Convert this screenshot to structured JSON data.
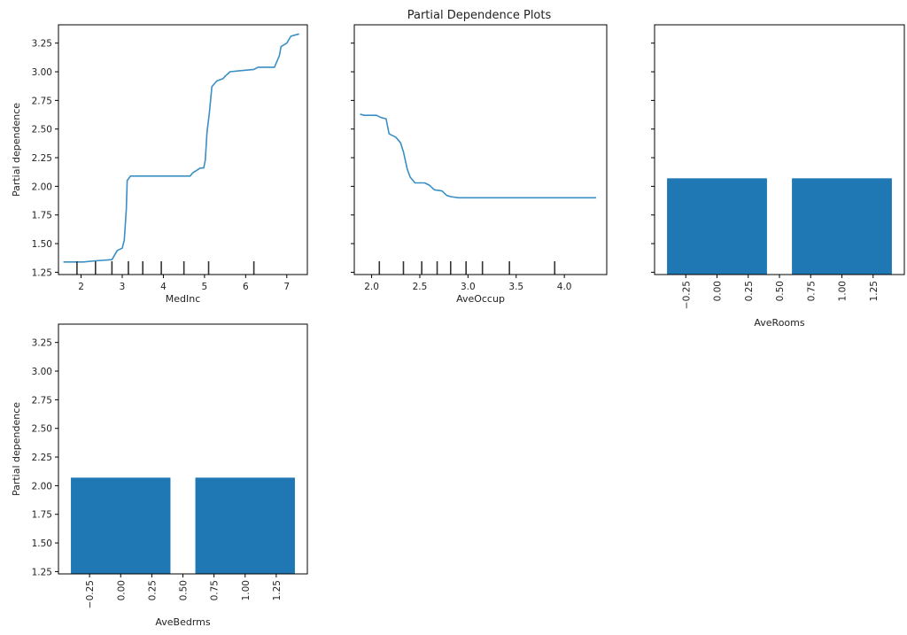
{
  "figure": {
    "title": "Partial Dependence Plots"
  },
  "chart_data": [
    {
      "type": "line",
      "xlabel": "MedInc",
      "ylabel": "Partial dependence",
      "xlim": [
        1.45,
        7.5
      ],
      "ylim": [
        1.23,
        3.41
      ],
      "xticks": [
        2,
        3,
        4,
        5,
        6,
        7
      ],
      "xtick_labels": [
        "2",
        "3",
        "4",
        "5",
        "6",
        "7"
      ],
      "yticks": [
        1.25,
        1.5,
        1.75,
        2.0,
        2.25,
        2.5,
        2.75,
        3.0,
        3.25
      ],
      "ytick_labels": [
        "1.25",
        "1.50",
        "1.75",
        "2.00",
        "2.25",
        "2.50",
        "2.75",
        "3.00",
        "3.25"
      ],
      "show_ytick_labels": true,
      "line_color": "#3a8fc4",
      "series": [
        {
          "x": [
            1.57,
            2.05,
            2.35,
            2.75,
            2.88,
            3.0,
            3.05,
            3.1,
            3.12,
            3.2,
            3.7,
            4.3,
            4.65,
            4.72,
            4.9,
            4.98,
            5.02,
            5.06,
            5.12,
            5.18,
            5.3,
            5.45,
            5.5,
            5.62,
            5.9,
            6.2,
            6.3,
            6.7,
            6.82,
            6.86,
            7.0,
            7.1,
            7.3
          ],
          "y": [
            1.34,
            1.34,
            1.35,
            1.36,
            1.44,
            1.46,
            1.53,
            1.8,
            2.05,
            2.09,
            2.09,
            2.09,
            2.09,
            2.12,
            2.16,
            2.16,
            2.23,
            2.47,
            2.65,
            2.87,
            2.92,
            2.94,
            2.96,
            3.0,
            3.01,
            3.02,
            3.04,
            3.04,
            3.14,
            3.22,
            3.25,
            3.31,
            3.33
          ]
        }
      ],
      "rug": [
        1.9,
        2.35,
        2.75,
        3.15,
        3.5,
        3.95,
        4.5,
        5.1,
        6.2
      ]
    },
    {
      "type": "line",
      "xlabel": "AveOccup",
      "ylabel": "",
      "xlim": [
        1.82,
        4.44
      ],
      "ylim": [
        1.23,
        3.41
      ],
      "xticks": [
        2.0,
        2.5,
        3.0,
        3.5,
        4.0
      ],
      "xtick_labels": [
        "2.0",
        "2.5",
        "3.0",
        "3.5",
        "4.0"
      ],
      "yticks": [
        1.25,
        1.5,
        1.75,
        2.0,
        2.25,
        2.5,
        2.75,
        3.0,
        3.25
      ],
      "ytick_labels": [
        "1.25",
        "1.50",
        "1.75",
        "2.00",
        "2.25",
        "2.50",
        "2.75",
        "3.00",
        "3.25"
      ],
      "show_ytick_labels": false,
      "line_color": "#3a8fc4",
      "series": [
        {
          "x": [
            1.88,
            1.92,
            2.05,
            2.1,
            2.15,
            2.18,
            2.2,
            2.25,
            2.3,
            2.33,
            2.37,
            2.4,
            2.45,
            2.55,
            2.6,
            2.65,
            2.73,
            2.78,
            2.82,
            2.9,
            2.95,
            3.0,
            4.33
          ],
          "y": [
            2.63,
            2.62,
            2.62,
            2.6,
            2.59,
            2.46,
            2.45,
            2.43,
            2.38,
            2.3,
            2.15,
            2.08,
            2.03,
            2.03,
            2.01,
            1.97,
            1.96,
            1.92,
            1.91,
            1.9,
            1.9,
            1.9,
            1.9
          ]
        }
      ],
      "rug": [
        2.08,
        2.33,
        2.52,
        2.68,
        2.82,
        2.98,
        3.15,
        3.43,
        3.9
      ]
    },
    {
      "type": "bar",
      "xlabel": "AveRooms",
      "ylabel": "",
      "xlim": [
        -0.5,
        1.5
      ],
      "ylim": [
        1.23,
        3.41
      ],
      "xticks": [
        -0.25,
        0.0,
        0.25,
        0.5,
        0.75,
        1.0,
        1.25
      ],
      "xtick_labels": [
        "−0.25",
        "0.00",
        "0.25",
        "0.50",
        "0.75",
        "1.00",
        "1.25"
      ],
      "yticks": [
        1.25,
        1.5,
        1.75,
        2.0,
        2.25,
        2.5,
        2.75,
        3.0,
        3.25
      ],
      "ytick_labels": [
        "1.25",
        "1.50",
        "1.75",
        "2.00",
        "2.25",
        "2.50",
        "2.75",
        "3.00",
        "3.25"
      ],
      "show_ytick_labels": false,
      "bar_color": "#1f77b4",
      "bars": [
        {
          "center": 0.0,
          "width": 0.8,
          "value": 2.07
        },
        {
          "center": 1.0,
          "width": 0.8,
          "value": 2.07
        }
      ]
    },
    {
      "type": "bar",
      "xlabel": "AveBedrms",
      "ylabel": "Partial dependence",
      "xlim": [
        -0.5,
        1.5
      ],
      "ylim": [
        1.23,
        3.41
      ],
      "xticks": [
        -0.25,
        0.0,
        0.25,
        0.5,
        0.75,
        1.0,
        1.25
      ],
      "xtick_labels": [
        "−0.25",
        "0.00",
        "0.25",
        "0.50",
        "0.75",
        "1.00",
        "1.25"
      ],
      "yticks": [
        1.25,
        1.5,
        1.75,
        2.0,
        2.25,
        2.5,
        2.75,
        3.0,
        3.25
      ],
      "ytick_labels": [
        "1.25",
        "1.50",
        "1.75",
        "2.00",
        "2.25",
        "2.50",
        "2.75",
        "3.00",
        "3.25"
      ],
      "show_ytick_labels": true,
      "bar_color": "#1f77b4",
      "bars": [
        {
          "center": 0.0,
          "width": 0.8,
          "value": 2.07
        },
        {
          "center": 1.0,
          "width": 0.8,
          "value": 2.07
        }
      ]
    }
  ]
}
